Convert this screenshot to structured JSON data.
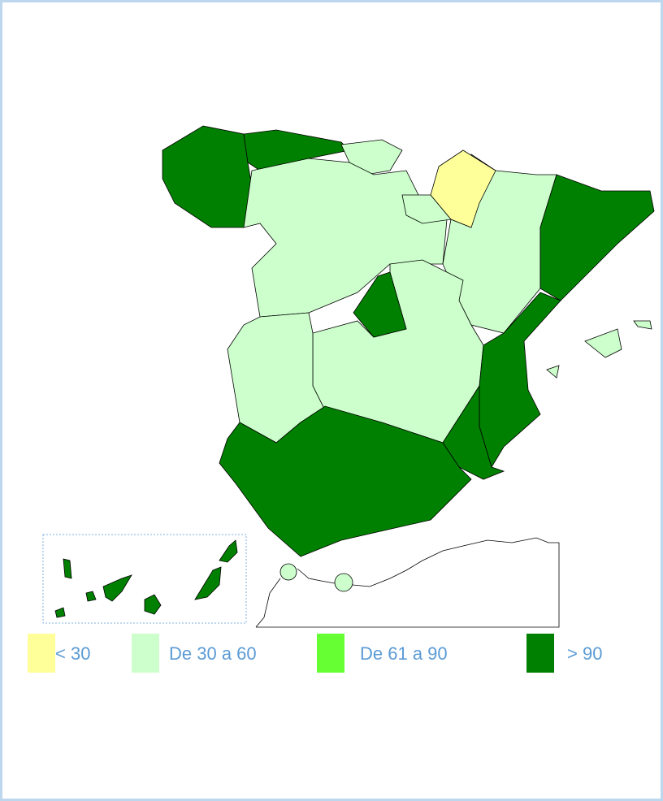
{
  "legend": [
    {
      "label": "< 30",
      "color": "#ffff99"
    },
    {
      "label": "De 30 a 60",
      "color": "#ccffcc"
    },
    {
      "label": "De 61 a 90",
      "color": "#66ff33"
    },
    {
      "label": "> 90",
      "color": "#008000"
    }
  ]
}
